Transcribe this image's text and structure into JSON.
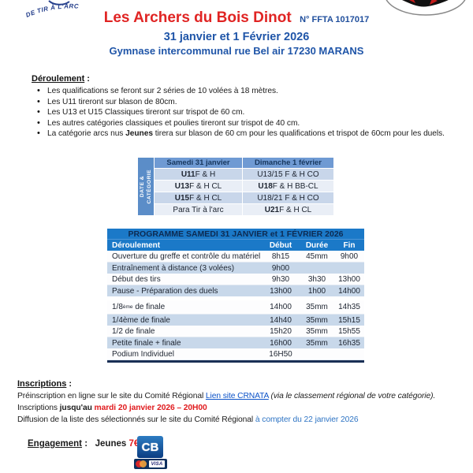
{
  "colors": {
    "accent_red": "#E02423",
    "brand_blue": "#1F55A8",
    "ffta_blue": "#1F4E9C",
    "programme_header_blue": "#1B79C8",
    "programme_title_text": "#0D2B52",
    "date_label_blue": "#5B8DC8",
    "date_header_blue": "#6F9AD3",
    "row_shaded": "#C8D8EA",
    "row_light": "#E9EEF6",
    "link_blue": "#0B52C8",
    "info_blue": "#2E74C4",
    "red_alert": "#E01B1E",
    "table_bottom_border": "#1A2F55"
  },
  "logos": {
    "federation_arc_text": "DE TIR À L'ARC"
  },
  "header": {
    "club_name": "Les Archers du Bois Dinot",
    "ffta_number": "N° FFTA 1017017",
    "dates_line": "31 janvier et 1 Février 2026",
    "venue_line": "Gymnase intercommunal rue Bel air 17230 MARANS"
  },
  "deroulement": {
    "heading": "Déroulement",
    "colon": " :",
    "bullets": [
      [
        {
          "t": "Les qualifications se feront sur 2 séries de 10 volées à 18 mètres."
        }
      ],
      [
        {
          "t": "Les U11 tireront sur blason de 80cm."
        }
      ],
      [
        {
          "t": "Les U13 et U15 Classiques tireront sur trispot de 60 cm."
        }
      ],
      [
        {
          "t": "Les autres catégories classiques et poulies tireront sur trispot de 40 cm."
        }
      ],
      [
        {
          "t": "La catégorie arcs nus "
        },
        {
          "t": "Jeunes",
          "s": "b"
        },
        {
          "t": " tirera sur blason de 60 cm pour les qualifications et trispot de 60cm pour les duels."
        }
      ]
    ]
  },
  "date_category_table": {
    "side_label_line1": "DATE &",
    "side_label_line2": "CATÉGORIE",
    "columns": [
      "Samedi 31 janvier",
      "Dimanche 1 février"
    ],
    "rows": [
      {
        "saturday": [
          {
            "t": "U11",
            "s": "b"
          },
          {
            "t": " F & H"
          }
        ],
        "sunday": [
          {
            "t": "U13/15 F & H CO"
          }
        ]
      },
      {
        "saturday": [
          {
            "t": "U13",
            "s": "b"
          },
          {
            "t": " F & H CL"
          }
        ],
        "sunday": [
          {
            "t": "U18",
            "s": "b"
          },
          {
            "t": " F & H BB-CL"
          }
        ]
      },
      {
        "saturday": [
          {
            "t": "U15",
            "s": "b"
          },
          {
            "t": " F & H CL"
          }
        ],
        "sunday": [
          {
            "t": "U18/21 F & H CO"
          }
        ]
      },
      {
        "saturday": [
          {
            "t": "Para Tir à l'arc"
          }
        ],
        "sunday": [
          {
            "t": "U21",
            "s": "b"
          },
          {
            "t": " F & H CL"
          }
        ]
      }
    ]
  },
  "programme_table": {
    "title": "PROGRAMME SAMEDI 31 JANVIER et 1 FÉVRIER 2026",
    "headers": [
      "Déroulement",
      "Début",
      "Durée",
      "Fin"
    ],
    "rows": [
      {
        "label": [
          {
            "t": "Ouverture du greffe et contrôle du matériel"
          }
        ],
        "debut": "8h15",
        "duree": "45mm",
        "fin": "9h00"
      },
      {
        "label": [
          {
            "t": "Entraînement à distance (3 volées)"
          }
        ],
        "debut": "9h00",
        "duree": "",
        "fin": ""
      },
      {
        "label": [
          {
            "t": "Début des tirs"
          }
        ],
        "debut": "9h30",
        "duree": "3h30",
        "fin": "13h00"
      },
      {
        "label": [
          {
            "t": "Pause - Préparation des duels"
          }
        ],
        "debut": "13h00",
        "duree": "1h00",
        "fin": "14h00"
      },
      {
        "label": [
          {
            "t": "1/8"
          },
          {
            "t": "ème",
            "s": "sup"
          },
          {
            "t": " de finale"
          }
        ],
        "debut": "14h00",
        "duree": "35mm",
        "fin": "14h35",
        "spacer_before": true,
        "tall": true
      },
      {
        "label": [
          {
            "t": "1/4ème de finale"
          }
        ],
        "debut": "14h40",
        "duree": "35mm",
        "fin": "15h15"
      },
      {
        "label": [
          {
            "t": "1/2 de finale"
          }
        ],
        "debut": "15h20",
        "duree": "35mm",
        "fin": "15h55"
      },
      {
        "label": [
          {
            "t": "Petite finale + finale"
          }
        ],
        "debut": "16h00",
        "duree": "35mm",
        "fin": "16h35"
      },
      {
        "label": [
          {
            "t": "Podium Individuel"
          }
        ],
        "debut": "16H50",
        "duree": "",
        "fin": ""
      }
    ]
  },
  "inscriptions": {
    "heading": "Inscriptions",
    "colon": " :",
    "lines": [
      [
        {
          "t": "Préinscription en ligne sur le site du Comité Régional "
        },
        {
          "t": "Lien site CRNATA",
          "s": "lk"
        },
        {
          "t": " "
        },
        {
          "t": "(via le classement régional de votre catégorie).",
          "s": "it"
        }
      ],
      [
        {
          "t": "Inscriptions "
        },
        {
          "t": "jusqu'au ",
          "s": "b"
        },
        {
          "t": "mardi 20 janvier 2026 – 20H00",
          "s": "rb"
        }
      ],
      [
        {
          "t": "Diffusion de la liste des sélectionnés sur le site du Comité Régional "
        },
        {
          "t": "à compter du 22 janvier 2026",
          "s": "bl"
        }
      ]
    ]
  },
  "engagement": {
    "segments": [
      {
        "t": "Engagement",
        "s": "bu"
      },
      {
        "t": " :   ",
        "s": "b"
      },
      {
        "t": "Jeunes ",
        "s": "b"
      },
      {
        "t": "7€",
        "s": "rb"
      }
    ]
  },
  "payment": {
    "cb_label": "CB",
    "visa_label": "VISA"
  }
}
